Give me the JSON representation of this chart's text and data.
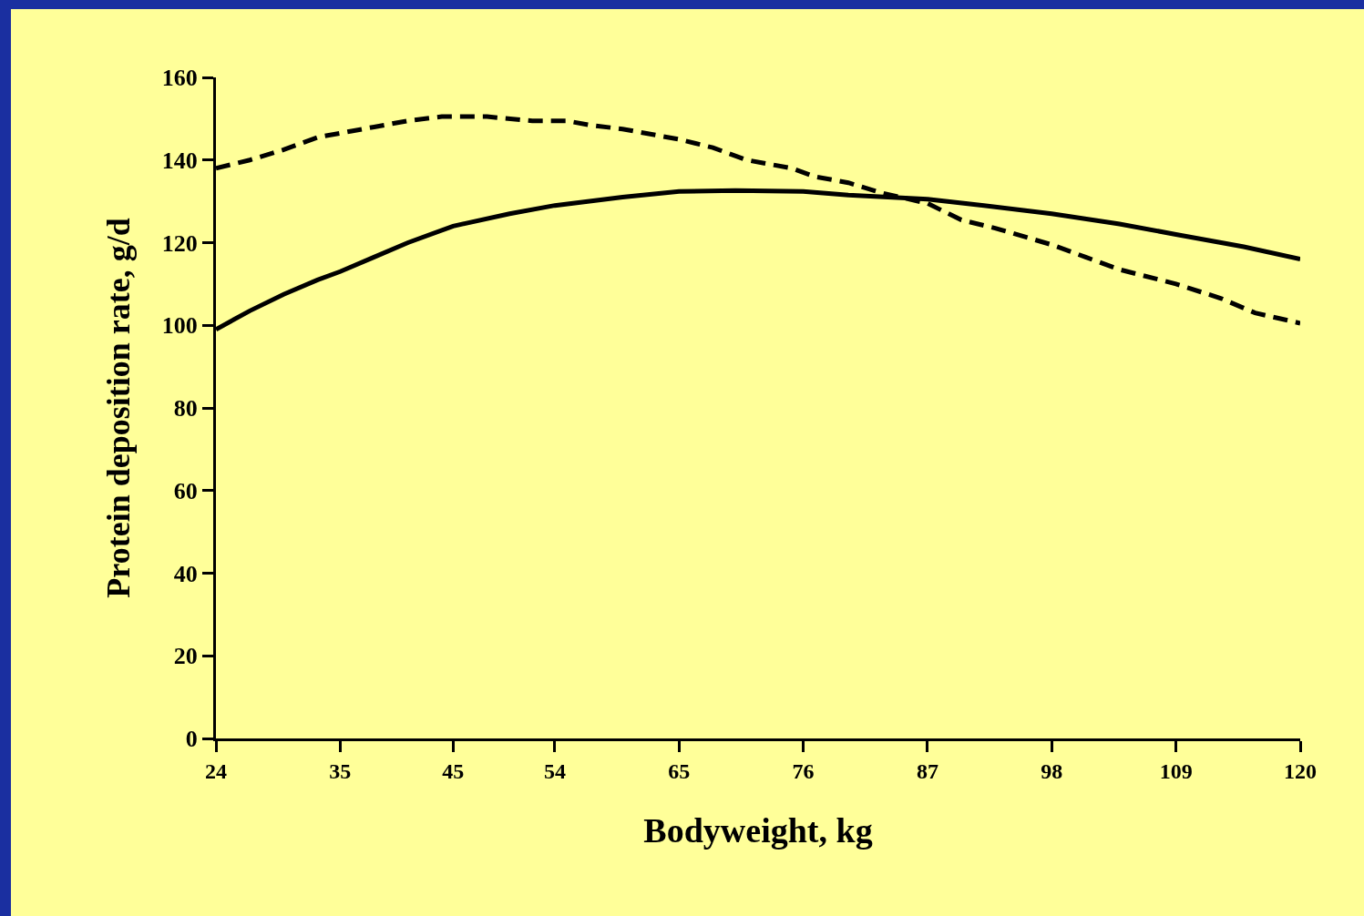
{
  "chart_data": {
    "type": "line",
    "xlabel": "Bodyweight, kg",
    "ylabel": "Protein deposition rate, g/d",
    "xlim": [
      24,
      120
    ],
    "xticks": [
      24,
      35,
      45,
      54,
      65,
      76,
      87,
      98,
      109,
      120
    ],
    "ylim": [
      0,
      160
    ],
    "yticks": [
      0,
      20,
      40,
      60,
      80,
      100,
      120,
      140,
      160
    ],
    "series": [
      {
        "color": "#000000",
        "line_style": "solid",
        "x": [
          24,
          27,
          30,
          33,
          35,
          38,
          41,
          45,
          50,
          54,
          60,
          65,
          70,
          76,
          80,
          87,
          92,
          98,
          104,
          109,
          115,
          120
        ],
        "values": [
          99,
          103.5,
          107.5,
          111,
          113,
          116.5,
          120,
          124,
          127,
          129,
          131,
          132.4,
          132.6,
          132.4,
          131.5,
          130.5,
          129,
          127,
          124.5,
          122,
          119,
          116
        ]
      },
      {
        "color": "#000000",
        "line_style": "dashed",
        "x": [
          24,
          27,
          30,
          33,
          36,
          38,
          41,
          44,
          46,
          48,
          52,
          55,
          57,
          60,
          62,
          65,
          68,
          71,
          75,
          77,
          80,
          83,
          87,
          90,
          93,
          98,
          101,
          104,
          109,
          113,
          116,
          120
        ],
        "values": [
          138,
          140,
          142.5,
          145.5,
          147,
          148,
          149.5,
          150.5,
          150.5,
          150.5,
          149.5,
          149.5,
          148.5,
          147.5,
          146.5,
          145,
          143,
          140,
          138,
          136,
          134.5,
          132,
          129.5,
          125.5,
          123.5,
          119.5,
          116.5,
          113.5,
          110,
          106.5,
          103,
          100.5
        ]
      }
    ]
  }
}
